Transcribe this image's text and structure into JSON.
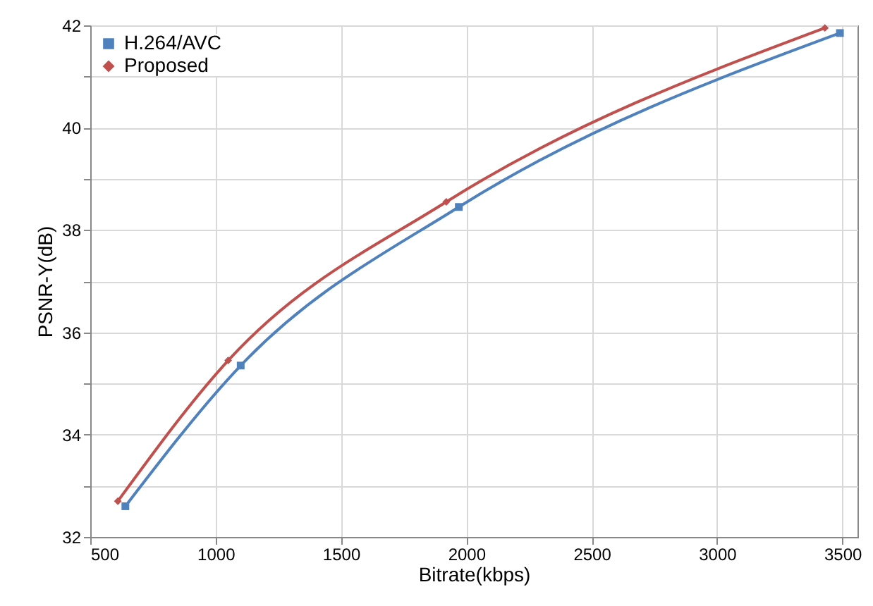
{
  "chart_data": {
    "type": "line",
    "xlabel": "Bitrate(kbps)",
    "ylabel": "PSNR-Y(dB)",
    "xlim": [
      500,
      3560
    ],
    "xticks": [
      500,
      1000,
      1500,
      2000,
      2500,
      3000,
      3500
    ],
    "ylim": [
      32,
      42
    ],
    "yticks": [
      32,
      {
        "value": 33,
        "label": null
      },
      34,
      {
        "value": 35,
        "label": null
      },
      36,
      {
        "value": 37,
        "label": null
      },
      38,
      {
        "value": 39,
        "label": null
      },
      40,
      {
        "value": 41,
        "label": null
      },
      42
    ],
    "grid": true,
    "legend": "top left",
    "line_style": "solid",
    "series": [
      {
        "name": "H.264/AVC",
        "color": "#4f81bd",
        "marker": "square",
        "x": [
          640,
          1100,
          1970,
          3490
        ],
        "values": [
          32.6,
          35.35,
          38.45,
          41.85
        ]
      },
      {
        "name": "Proposed",
        "color": "#c0504d",
        "marker": "diamond",
        "x": [
          610,
          1050,
          1920,
          3430
        ],
        "values": [
          32.7,
          35.45,
          38.55,
          41.95
        ]
      }
    ]
  }
}
